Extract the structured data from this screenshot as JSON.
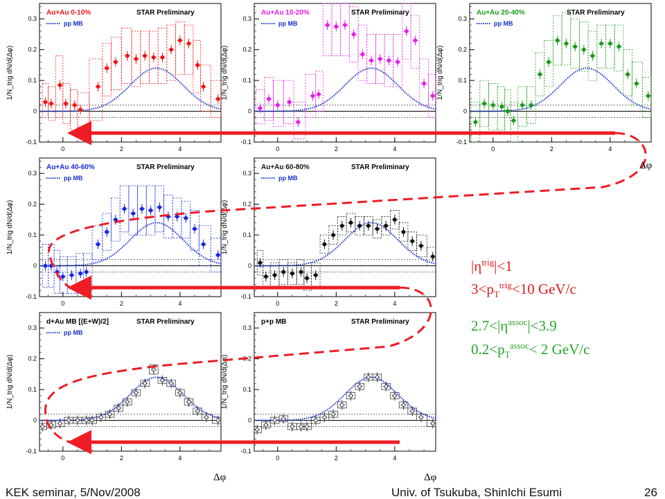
{
  "slide": {
    "footer_left": "KEK seminar, 5/Nov/2008",
    "footer_center": "Univ. of Tsukuba, ShinIchi Esumi",
    "page_number": "26"
  },
  "common": {
    "preliminary_label": "STAR Preliminary",
    "reference_label": "pp MB",
    "y_axis_label": "1/N_trig dN/d(Δφ)",
    "x_axis_label": "Δφ",
    "x_ticks": [
      "0",
      "2",
      "4"
    ],
    "y_ticks": [
      "-0.1",
      "0",
      "0.1",
      "0.2",
      "0.3"
    ]
  },
  "annotations": {
    "trigger_eta": "|η^trig|<1",
    "trigger_pt": "3<p_T^trig<10 GeV/c",
    "assoc_eta": "2.7<|η^assoc|<3.9",
    "assoc_pt": "0.2<p_T^assoc< 2 GeV/c",
    "trigger_color": "#e0191b",
    "assoc_color": "#27a327"
  },
  "chart_data": [
    {
      "type": "scatter",
      "title": "Au+Au 0-10%",
      "color": "#f01414",
      "xlim": [
        -0.8,
        5.4
      ],
      "ylim": [
        -0.1,
        0.35
      ],
      "x": [
        -0.6,
        -0.4,
        -0.1,
        0.1,
        0.4,
        0.6,
        1.2,
        1.5,
        1.8,
        2.2,
        2.5,
        2.8,
        3.1,
        3.4,
        3.7,
        4.0,
        4.3,
        4.6,
        4.8,
        5.3
      ],
      "y": [
        0.03,
        0.025,
        0.085,
        0.025,
        0.02,
        0.005,
        0.08,
        0.14,
        0.16,
        0.18,
        0.17,
        0.18,
        0.175,
        0.175,
        0.2,
        0.23,
        0.22,
        0.15,
        0.08,
        0.04
      ],
      "band_low": [
        -0.02,
        -0.03,
        -0.02,
        -0.04,
        -0.06,
        -0.05,
        -0.03,
        0.05,
        0.07,
        0.09,
        0.08,
        0.09,
        0.09,
        0.09,
        0.1,
        0.12,
        0.12,
        0.06,
        0.0,
        -0.02
      ],
      "band_high": [
        0.09,
        0.08,
        0.18,
        0.09,
        0.07,
        0.06,
        0.17,
        0.22,
        0.24,
        0.27,
        0.26,
        0.26,
        0.26,
        0.27,
        0.28,
        0.29,
        0.28,
        0.23,
        0.15,
        0.1
      ]
    },
    {
      "type": "scatter",
      "title": "Au+Au 10-20%",
      "color": "#e81ae8",
      "xlim": [
        -0.8,
        5.4
      ],
      "ylim": [
        -0.1,
        0.35
      ],
      "x": [
        -0.6,
        -0.3,
        0.0,
        0.4,
        0.7,
        1.2,
        1.4,
        1.7,
        2.0,
        2.3,
        2.6,
        2.9,
        3.2,
        3.5,
        3.8,
        4.1,
        4.4,
        4.7,
        5.0,
        5.3
      ],
      "y": [
        0.01,
        0.04,
        0.02,
        0.03,
        -0.035,
        0.05,
        0.055,
        0.28,
        0.275,
        0.28,
        0.25,
        0.185,
        0.165,
        0.17,
        0.165,
        0.16,
        0.26,
        0.23,
        0.09,
        0.05
      ],
      "band_low": [
        -0.04,
        -0.03,
        -0.05,
        -0.04,
        -0.09,
        -0.02,
        0.0,
        0.18,
        0.18,
        0.18,
        0.16,
        0.1,
        0.09,
        0.09,
        0.08,
        0.08,
        0.17,
        0.14,
        0.02,
        -0.02
      ],
      "band_high": [
        0.07,
        0.11,
        0.1,
        0.1,
        0.03,
        0.12,
        0.13,
        0.37,
        0.37,
        0.37,
        0.34,
        0.28,
        0.25,
        0.25,
        0.25,
        0.25,
        0.35,
        0.31,
        0.17,
        0.12
      ]
    },
    {
      "type": "scatter",
      "title": "Au+Au 20-40%",
      "color": "#189a18",
      "xlim": [
        -0.8,
        5.4
      ],
      "ylim": [
        -0.1,
        0.35
      ],
      "x": [
        -0.6,
        -0.3,
        0.0,
        0.3,
        0.5,
        0.7,
        1.0,
        1.3,
        1.6,
        1.9,
        2.2,
        2.5,
        2.8,
        3.1,
        3.4,
        3.7,
        4.0,
        4.3,
        4.6,
        4.9,
        5.3
      ],
      "y": [
        -0.035,
        0.025,
        0.02,
        0.015,
        0.0,
        -0.03,
        0.02,
        0.02,
        0.12,
        0.16,
        0.23,
        0.22,
        0.21,
        0.2,
        0.18,
        0.22,
        0.22,
        0.21,
        0.12,
        0.09,
        0.05
      ],
      "band_low": [
        -0.1,
        -0.05,
        -0.06,
        -0.06,
        -0.07,
        -0.1,
        -0.05,
        -0.04,
        0.05,
        0.08,
        0.15,
        0.15,
        0.14,
        0.13,
        0.1,
        0.14,
        0.14,
        0.13,
        0.05,
        0.02,
        -0.02
      ],
      "band_high": [
        0.03,
        0.1,
        0.09,
        0.08,
        0.07,
        0.03,
        0.08,
        0.08,
        0.19,
        0.23,
        0.31,
        0.32,
        0.3,
        0.29,
        0.26,
        0.28,
        0.28,
        0.28,
        0.2,
        0.16,
        0.11
      ]
    },
    {
      "type": "scatter",
      "title": "Au+Au 40-60%",
      "color": "#1428e6",
      "xlim": [
        -0.8,
        5.4
      ],
      "ylim": [
        -0.1,
        0.35
      ],
      "x": [
        -0.6,
        -0.4,
        -0.2,
        0.0,
        0.3,
        0.6,
        0.8,
        1.2,
        1.5,
        1.8,
        2.1,
        2.4,
        2.7,
        3.0,
        3.3,
        3.6,
        3.9,
        4.2,
        4.5,
        4.8,
        5.3
      ],
      "y": [
        0.0,
        0.0,
        -0.02,
        -0.035,
        -0.03,
        -0.025,
        -0.02,
        0.07,
        0.11,
        0.15,
        0.185,
        0.17,
        0.185,
        0.18,
        0.19,
        0.16,
        0.16,
        0.155,
        0.12,
        0.07,
        0.035
      ],
      "band_low": [
        -0.07,
        -0.07,
        -0.09,
        -0.09,
        -0.09,
        -0.09,
        -0.08,
        0.02,
        0.05,
        0.08,
        0.11,
        0.1,
        0.1,
        0.1,
        0.11,
        0.09,
        0.09,
        0.09,
        0.05,
        0.0,
        -0.02
      ],
      "band_high": [
        0.07,
        0.07,
        0.05,
        0.03,
        0.03,
        0.04,
        0.04,
        0.13,
        0.17,
        0.22,
        0.26,
        0.26,
        0.26,
        0.26,
        0.26,
        0.23,
        0.22,
        0.21,
        0.18,
        0.13,
        0.09
      ]
    },
    {
      "type": "scatter",
      "title": "Au+Au 60-80%",
      "color": "#111111",
      "xlim": [
        -0.8,
        5.4
      ],
      "ylim": [
        -0.1,
        0.35
      ],
      "x": [
        -0.6,
        -0.4,
        -0.1,
        0.2,
        0.5,
        0.8,
        1.0,
        1.3,
        1.6,
        1.9,
        2.2,
        2.5,
        2.8,
        3.1,
        3.4,
        3.7,
        4.0,
        4.3,
        4.6,
        4.9,
        5.3
      ],
      "y": [
        0.01,
        -0.035,
        -0.03,
        -0.02,
        -0.025,
        -0.02,
        -0.04,
        -0.03,
        0.07,
        0.1,
        0.13,
        0.14,
        0.13,
        0.13,
        0.12,
        0.13,
        0.15,
        0.11,
        0.08,
        0.065,
        0.03
      ],
      "band_low": [
        -0.03,
        -0.07,
        -0.07,
        -0.06,
        -0.06,
        -0.06,
        -0.08,
        -0.07,
        0.04,
        0.07,
        0.1,
        0.11,
        0.1,
        0.1,
        0.09,
        0.1,
        0.12,
        0.08,
        0.05,
        0.03,
        0.0
      ],
      "band_high": [
        0.05,
        0.0,
        0.01,
        0.02,
        0.01,
        0.02,
        0.0,
        0.01,
        0.1,
        0.13,
        0.16,
        0.17,
        0.16,
        0.16,
        0.15,
        0.16,
        0.18,
        0.14,
        0.11,
        0.1,
        0.06
      ]
    },
    {
      "type": "scatter",
      "title": "d+Au MB [(E+W)/2]",
      "color": "#333333",
      "xlim": [
        -0.8,
        5.4
      ],
      "ylim": [
        -0.1,
        0.35
      ],
      "x": [
        -0.7,
        -0.4,
        -0.1,
        0.2,
        0.5,
        0.8,
        1.0,
        1.3,
        1.6,
        1.9,
        2.2,
        2.5,
        2.8,
        3.1,
        3.4,
        3.7,
        4.0,
        4.3,
        4.6,
        4.9,
        5.3
      ],
      "y": [
        -0.02,
        -0.015,
        -0.01,
        0.0,
        0.0,
        0.0,
        0.0,
        0.01,
        0.02,
        0.04,
        0.06,
        0.09,
        0.12,
        0.165,
        0.13,
        0.12,
        0.09,
        0.06,
        0.03,
        0.01,
        0.0
      ],
      "band_low": [
        -0.03,
        -0.025,
        -0.02,
        -0.01,
        -0.01,
        -0.01,
        -0.01,
        0.0,
        0.01,
        0.03,
        0.05,
        0.08,
        0.11,
        0.15,
        0.12,
        0.11,
        0.08,
        0.05,
        0.02,
        0.0,
        -0.01
      ],
      "band_high": [
        -0.01,
        -0.005,
        0.0,
        0.01,
        0.01,
        0.01,
        0.01,
        0.02,
        0.03,
        0.05,
        0.07,
        0.1,
        0.13,
        0.18,
        0.14,
        0.13,
        0.1,
        0.07,
        0.04,
        0.02,
        0.01
      ]
    },
    {
      "type": "scatter",
      "title": "p+p MB",
      "color": "#333333",
      "xlim": [
        -0.8,
        5.4
      ],
      "ylim": [
        -0.1,
        0.35
      ],
      "x": [
        -0.7,
        -0.4,
        -0.1,
        0.2,
        0.5,
        0.8,
        1.0,
        1.3,
        1.6,
        1.9,
        2.2,
        2.5,
        2.8,
        3.1,
        3.4,
        3.7,
        4.0,
        4.3,
        4.6,
        4.9,
        5.3
      ],
      "y": [
        -0.03,
        -0.015,
        0.0,
        0.005,
        -0.02,
        -0.02,
        -0.02,
        0.0,
        0.01,
        0.02,
        0.05,
        0.08,
        0.11,
        0.14,
        0.14,
        0.11,
        0.08,
        0.05,
        0.03,
        0.01,
        -0.01
      ],
      "band_low": [
        -0.04,
        -0.025,
        -0.01,
        -0.005,
        -0.03,
        -0.03,
        -0.03,
        -0.01,
        0.0,
        0.01,
        0.04,
        0.07,
        0.1,
        0.13,
        0.13,
        0.1,
        0.07,
        0.04,
        0.02,
        0.0,
        -0.02
      ],
      "band_high": [
        -0.02,
        -0.005,
        0.01,
        0.015,
        -0.01,
        -0.01,
        -0.01,
        0.01,
        0.02,
        0.03,
        0.06,
        0.09,
        0.12,
        0.15,
        0.15,
        0.12,
        0.09,
        0.06,
        0.04,
        0.02,
        0.0
      ]
    }
  ]
}
